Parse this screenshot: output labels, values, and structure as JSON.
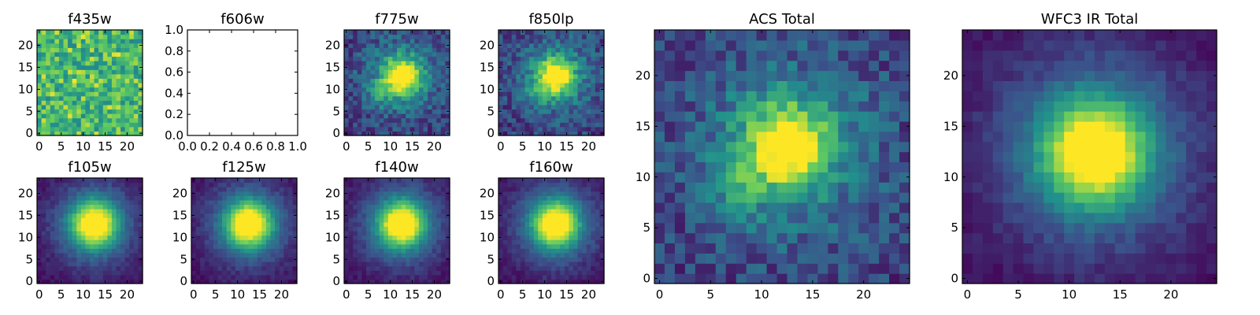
{
  "figure": {
    "type": "heatmap-grid",
    "colormap": [
      "#440154",
      "#3b528b",
      "#21918c",
      "#5ec962",
      "#fde725"
    ]
  },
  "chart_data": [
    {
      "id": "f435w",
      "title": "f435w",
      "type": "heatmap",
      "grid": [
        24,
        24
      ],
      "pattern": "noise",
      "xlim": [
        0,
        24
      ],
      "ylim": [
        0,
        24
      ],
      "xticks": [
        0,
        5,
        10,
        15,
        20
      ],
      "yticks": [
        0,
        5,
        10,
        15,
        20
      ],
      "center": [
        12,
        13
      ]
    },
    {
      "id": "f606w",
      "title": "f606w",
      "type": "empty",
      "xlim": [
        0,
        1
      ],
      "ylim": [
        0,
        1
      ],
      "xticks": [
        "0.0",
        "0.2",
        "0.4",
        "0.6",
        "0.8",
        "1.0"
      ],
      "yticks": [
        "0.0",
        "0.2",
        "0.4",
        "0.6",
        "0.8",
        "1.0"
      ]
    },
    {
      "id": "f775w",
      "title": "f775w",
      "type": "heatmap",
      "grid": [
        24,
        24
      ],
      "pattern": "acs",
      "xlim": [
        0,
        24
      ],
      "ylim": [
        0,
        24
      ],
      "xticks": [
        0,
        5,
        10,
        15,
        20
      ],
      "yticks": [
        0,
        5,
        10,
        15,
        20
      ],
      "center": [
        12.5,
        13
      ]
    },
    {
      "id": "f850lp",
      "title": "f850lp",
      "type": "heatmap",
      "grid": [
        24,
        24
      ],
      "pattern": "acs",
      "xlim": [
        0,
        24
      ],
      "ylim": [
        0,
        24
      ],
      "xticks": [
        0,
        5,
        10,
        15,
        20
      ],
      "yticks": [
        0,
        5,
        10,
        15,
        20
      ],
      "center": [
        12.5,
        13
      ]
    },
    {
      "id": "acs_total",
      "title": "ACS Total",
      "type": "heatmap",
      "grid": [
        25,
        25
      ],
      "pattern": "acs",
      "xlim": [
        0,
        24
      ],
      "ylim": [
        0,
        24
      ],
      "xticks": [
        0,
        5,
        10,
        15,
        20
      ],
      "yticks": [
        0,
        5,
        10,
        15,
        20
      ],
      "center": [
        12.5,
        13
      ]
    },
    {
      "id": "wfc3_total",
      "title": "WFC3 IR Total",
      "type": "heatmap",
      "grid": [
        25,
        25
      ],
      "pattern": "ir",
      "xlim": [
        0,
        24
      ],
      "ylim": [
        0,
        24
      ],
      "xticks": [
        0,
        5,
        10,
        15,
        20
      ],
      "yticks": [
        0,
        5,
        10,
        15,
        20
      ],
      "center": [
        12.5,
        12.5
      ]
    },
    {
      "id": "f105w",
      "title": "f105w",
      "type": "heatmap",
      "grid": [
        24,
        24
      ],
      "pattern": "ir",
      "xlim": [
        0,
        24
      ],
      "ylim": [
        0,
        24
      ],
      "xticks": [
        0,
        5,
        10,
        15,
        20
      ],
      "yticks": [
        0,
        5,
        10,
        15,
        20
      ],
      "center": [
        12.5,
        13
      ]
    },
    {
      "id": "f125w",
      "title": "f125w",
      "type": "heatmap",
      "grid": [
        24,
        24
      ],
      "pattern": "ir",
      "xlim": [
        0,
        24
      ],
      "ylim": [
        0,
        24
      ],
      "xticks": [
        0,
        5,
        10,
        15,
        20
      ],
      "yticks": [
        0,
        5,
        10,
        15,
        20
      ],
      "center": [
        12.5,
        13
      ]
    },
    {
      "id": "f140w",
      "title": "f140w",
      "type": "heatmap",
      "grid": [
        24,
        24
      ],
      "pattern": "ir",
      "xlim": [
        0,
        24
      ],
      "ylim": [
        0,
        24
      ],
      "xticks": [
        0,
        5,
        10,
        15,
        20
      ],
      "yticks": [
        0,
        5,
        10,
        15,
        20
      ],
      "center": [
        12.5,
        13
      ]
    },
    {
      "id": "f160w",
      "title": "f160w",
      "type": "heatmap",
      "grid": [
        24,
        24
      ],
      "pattern": "ir",
      "xlim": [
        0,
        24
      ],
      "ylim": [
        0,
        24
      ],
      "xticks": [
        0,
        5,
        10,
        15,
        20
      ],
      "yticks": [
        0,
        5,
        10,
        15,
        20
      ],
      "center": [
        12.5,
        13
      ]
    }
  ]
}
